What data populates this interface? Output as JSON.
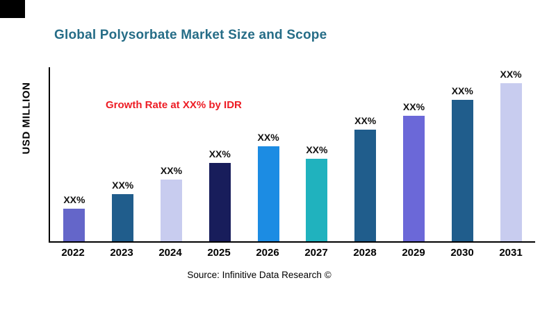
{
  "page": {
    "title": "Global Polysorbate Market Size and Scope",
    "source": "Source: Infinitive Data Research ©"
  },
  "chart": {
    "y_axis_label": "USD MILLION",
    "annotation": "Growth Rate at XX% by IDR",
    "annotation_color": "#ED1C24",
    "title_color": "#266D87"
  },
  "chart_data": {
    "type": "bar",
    "title": "Global Polysorbate Market Size and Scope",
    "xlabel": "",
    "ylabel": "USD MILLION",
    "categories": [
      "2022",
      "2023",
      "2024",
      "2025",
      "2026",
      "2027",
      "2028",
      "2029",
      "2030",
      "2031"
    ],
    "values": [
      47,
      69,
      90,
      114,
      138,
      120,
      162,
      182,
      206,
      230
    ],
    "data_labels": [
      "XX%",
      "XX%",
      "XX%",
      "XX%",
      "XX%",
      "XX%",
      "XX%",
      "XX%",
      "XX%",
      "XX%"
    ],
    "bar_colors": [
      "#6466C9",
      "#205D8C",
      "#C8CCEF",
      "#181D5B",
      "#1C8CE3",
      "#20B2BE",
      "#205D8C",
      "#6B68D8",
      "#205D8C",
      "#C8CCEF"
    ],
    "ylim": [
      0,
      253
    ],
    "annotation": "Growth Rate at XX% by IDR",
    "legend": "none",
    "grid": false
  }
}
